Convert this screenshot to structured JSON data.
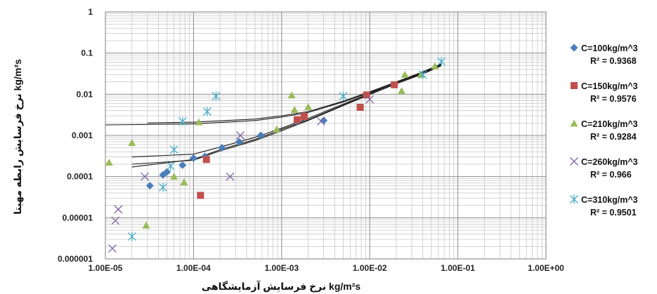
{
  "chart_data": {
    "type": "scatter",
    "xlabel": "kg/m²s نرخ فرسایش آزمایشگاهی",
    "ylabel": "kg/m²s نرخ فرسایش رابطه مهیتا",
    "x_scale": "log",
    "y_scale": "log",
    "xlim": [
      1e-05,
      1
    ],
    "ylim": [
      1e-06,
      1
    ],
    "x_ticks": [
      "1.00E-05",
      "1.00E-04",
      "1.00E-03",
      "1.00E-02",
      "1.00E-01",
      "1.00E+00"
    ],
    "y_ticks": [
      "0.000001",
      "0.00001",
      "0.0001",
      "0.001",
      "0.01",
      "0.1",
      "1"
    ],
    "grid": true,
    "legend_position": "right",
    "series": [
      {
        "name": "C=100kg/m^3",
        "r2": "R² = 0.9368",
        "color": "#4a7ebb",
        "marker": "diamond",
        "points": [
          [
            3.2e-05,
            6e-05
          ],
          [
            4.5e-05,
            0.00011
          ],
          [
            5e-05,
            0.00013
          ],
          [
            7.5e-05,
            0.00019
          ],
          [
            0.0001,
            0.00028
          ],
          [
            0.000135,
            0.00031
          ],
          [
            0.00021,
            0.0005
          ],
          [
            0.00033,
            0.0007
          ],
          [
            0.00058,
            0.001
          ],
          [
            0.0015,
            0.0022
          ],
          [
            0.003,
            0.0023
          ]
        ],
        "trend": [
          [
            2e-05,
            0.00017
          ],
          [
            0.0001,
            0.00026
          ],
          [
            0.0002,
            0.00045
          ],
          [
            0.0005,
            0.0008
          ],
          [
            0.001,
            0.0014
          ],
          [
            0.002,
            0.0024
          ],
          [
            0.005,
            0.0055
          ],
          [
            0.01,
            0.01
          ],
          [
            0.02,
            0.018
          ],
          [
            0.04,
            0.032
          ],
          [
            0.065,
            0.05
          ]
        ]
      },
      {
        "name": "C=150kg/m^3",
        "r2": "R² = 0.9576",
        "color": "#c0504d",
        "marker": "square",
        "points": [
          [
            0.00012,
            3.5e-05
          ],
          [
            0.00014,
            0.00026
          ],
          [
            0.0015,
            0.0024
          ],
          [
            0.0018,
            0.0029
          ],
          [
            0.0078,
            0.0048
          ],
          [
            0.0092,
            0.0096
          ],
          [
            0.019,
            0.017
          ]
        ],
        "trend": [
          [
            2e-05,
            0.0003
          ],
          [
            0.0001,
            0.00035
          ],
          [
            0.0002,
            0.00052
          ],
          [
            0.0005,
            0.0009
          ],
          [
            0.001,
            0.0015
          ],
          [
            0.002,
            0.0026
          ],
          [
            0.005,
            0.0058
          ],
          [
            0.01,
            0.0105
          ],
          [
            0.02,
            0.019
          ],
          [
            0.04,
            0.033
          ],
          [
            0.065,
            0.052
          ]
        ]
      },
      {
        "name": "C=210kg/m^3",
        "r2": "R² = 0.9284",
        "color": "#9bbb59",
        "marker": "triangle",
        "points": [
          [
            1.1e-05,
            0.00022
          ],
          [
            2e-05,
            0.00066
          ],
          [
            2.9e-05,
            6.5e-06
          ],
          [
            6e-05,
            0.0001
          ],
          [
            7.8e-05,
            7.3e-05
          ],
          [
            0.000115,
            0.0021
          ],
          [
            0.00088,
            0.0014
          ],
          [
            0.0013,
            0.0095
          ],
          [
            0.0014,
            0.0042
          ],
          [
            0.002,
            0.0049
          ],
          [
            0.023,
            0.012
          ],
          [
            0.025,
            0.03
          ],
          [
            0.038,
            0.03
          ],
          [
            0.055,
            0.048
          ]
        ],
        "trend": [
          [
            1e-05,
            0.0018
          ],
          [
            0.0001,
            0.0019
          ],
          [
            0.0005,
            0.0023
          ],
          [
            0.001,
            0.0028
          ],
          [
            0.002,
            0.0036
          ],
          [
            0.005,
            0.0065
          ],
          [
            0.01,
            0.011
          ],
          [
            0.02,
            0.019
          ],
          [
            0.04,
            0.034
          ],
          [
            0.065,
            0.054
          ]
        ]
      },
      {
        "name": "C=260kg/m^3",
        "r2": "R² = 0.966",
        "color": "#8064a2",
        "marker": "x",
        "points": [
          [
            1.2e-05,
            1.8e-06
          ],
          [
            1.3e-05,
            8.5e-06
          ],
          [
            1.4e-05,
            1.6e-05
          ],
          [
            2.8e-05,
            0.0001
          ],
          [
            0.00026,
            0.0001
          ],
          [
            0.00034,
            0.001
          ],
          [
            0.0028,
            0.0022
          ],
          [
            0.01,
            0.0075
          ]
        ],
        "trend": [
          [
            2e-05,
            0.0002
          ],
          [
            0.0001,
            0.00025
          ],
          [
            0.0002,
            0.00042
          ],
          [
            0.0005,
            0.00075
          ],
          [
            0.001,
            0.0013
          ],
          [
            0.002,
            0.0023
          ],
          [
            0.005,
            0.0053
          ],
          [
            0.01,
            0.0098
          ],
          [
            0.02,
            0.018
          ],
          [
            0.04,
            0.031
          ],
          [
            0.065,
            0.049
          ]
        ]
      },
      {
        "name": "C=310kg/m^3",
        "r2": "R² = 0.9501",
        "color": "#4bacc6",
        "marker": "star",
        "points": [
          [
            2e-05,
            3.5e-06
          ],
          [
            4.5e-05,
            5.5e-05
          ],
          [
            5.5e-05,
            0.00018
          ],
          [
            6e-05,
            0.00045
          ],
          [
            7.5e-05,
            0.0022
          ],
          [
            0.000143,
            0.0038
          ],
          [
            0.00018,
            0.009
          ],
          [
            0.005,
            0.009
          ],
          [
            0.04,
            0.03
          ],
          [
            0.065,
            0.062
          ]
        ],
        "trend": [
          [
            3e-05,
            0.002
          ],
          [
            0.0001,
            0.0021
          ],
          [
            0.0005,
            0.0025
          ],
          [
            0.001,
            0.003
          ],
          [
            0.002,
            0.0038
          ],
          [
            0.005,
            0.0068
          ],
          [
            0.01,
            0.0115
          ],
          [
            0.02,
            0.02
          ],
          [
            0.04,
            0.035
          ],
          [
            0.065,
            0.055
          ]
        ]
      }
    ]
  }
}
